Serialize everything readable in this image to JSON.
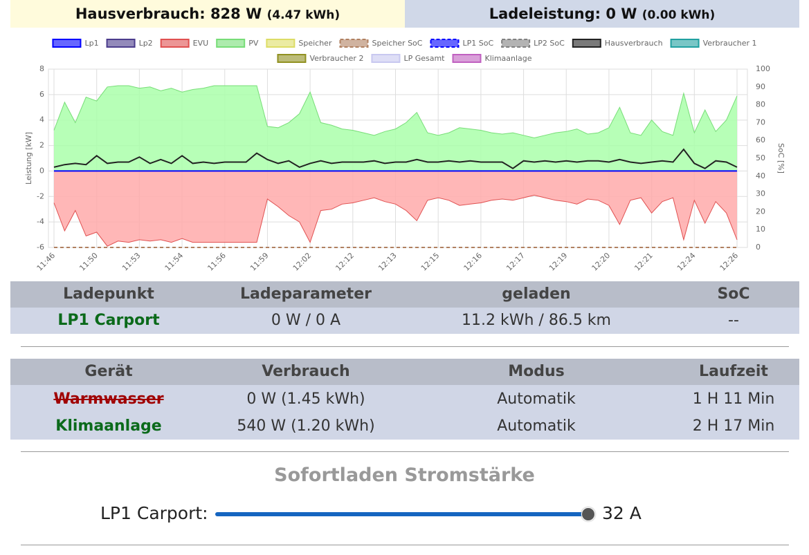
{
  "header": {
    "house_label": "Hausverbrauch: 828 W",
    "house_energy": "(4.47 kWh)",
    "charge_label": "Ladeleistung: 0 W",
    "charge_energy": "(0.00 kWh)"
  },
  "chart_data": {
    "type": "line",
    "ylabel": "Leistung [kW]",
    "y2label": "SoC [%]",
    "categories": [
      "11:46",
      null,
      null,
      null,
      "11:50",
      null,
      null,
      null,
      "11:53",
      null,
      null,
      null,
      "11:54",
      null,
      null,
      null,
      "11:56",
      null,
      null,
      null,
      "11:59",
      null,
      null,
      null,
      "12:02",
      null,
      null,
      null,
      "12:12",
      null,
      null,
      null,
      "12:13",
      null,
      null,
      null,
      "12:15",
      null,
      null,
      null,
      "12:16",
      null,
      null,
      null,
      "12:17",
      null,
      null,
      null,
      "12:19",
      null,
      null,
      null,
      "12:20",
      null,
      null,
      null,
      "12:21",
      null,
      null,
      null,
      "12:24",
      null,
      null,
      null,
      "12:26"
    ],
    "ylim": [
      -6,
      8
    ],
    "yticks": [
      -6,
      -4,
      -2,
      0,
      2,
      4,
      6,
      8
    ],
    "y2lim": [
      0,
      100
    ],
    "y2ticks": [
      0,
      10,
      20,
      30,
      40,
      50,
      60,
      70,
      80,
      90,
      100
    ],
    "grid": true,
    "legend": "top",
    "series": [
      {
        "name": "Lp1",
        "color": "#0000ff",
        "values": [
          0,
          0,
          0,
          0,
          0,
          0,
          0,
          0,
          0,
          0,
          0,
          0,
          0,
          0,
          0,
          0,
          0,
          0,
          0,
          0,
          0,
          0,
          0,
          0,
          0,
          0,
          0,
          0,
          0,
          0,
          0,
          0,
          0,
          0,
          0,
          0,
          0,
          0,
          0,
          0,
          0,
          0,
          0,
          0,
          0,
          0,
          0,
          0,
          0,
          0,
          0,
          0,
          0,
          0,
          0,
          0,
          0,
          0,
          0,
          0,
          0,
          0,
          0,
          0,
          0
        ]
      },
      {
        "name": "Lp2",
        "color": "#4b3c8c"
      },
      {
        "name": "EVU",
        "color": "#e05050",
        "fill": "#ffaaaa",
        "values": [
          -2.5,
          -4.7,
          -3.1,
          -5.1,
          -4.8,
          -5.9,
          -5.5,
          -5.6,
          -5.4,
          -5.5,
          -5.4,
          -5.6,
          -5.3,
          -5.6,
          -5.6,
          -5.6,
          -5.6,
          -5.6,
          -5.6,
          -5.6,
          -2.2,
          -2.8,
          -3.5,
          -4.0,
          -5.6,
          -3.1,
          -3.0,
          -2.6,
          -2.5,
          -2.3,
          -2.1,
          -2.4,
          -2.6,
          -3.1,
          -3.9,
          -2.3,
          -2.1,
          -2.3,
          -2.7,
          -2.6,
          -2.5,
          -2.3,
          -2.2,
          -2.3,
          -2.1,
          -1.9,
          -2.1,
          -2.3,
          -2.4,
          -2.6,
          -2.2,
          -2.3,
          -2.7,
          -4.2,
          -2.3,
          -2.1,
          -3.3,
          -2.4,
          -2.1,
          -5.4,
          -2.3,
          -4.1,
          -2.4,
          -3.3,
          -5.4
        ]
      },
      {
        "name": "PV",
        "color": "#77dd77",
        "fill": "#aaffaa",
        "values": [
          3.2,
          5.4,
          3.8,
          5.8,
          5.5,
          6.6,
          6.7,
          6.7,
          6.5,
          6.6,
          6.3,
          6.5,
          6.2,
          6.4,
          6.5,
          6.7,
          6.7,
          6.7,
          6.7,
          6.7,
          3.5,
          3.4,
          3.8,
          4.5,
          6.2,
          3.8,
          3.6,
          3.3,
          3.2,
          3.0,
          2.8,
          3.1,
          3.3,
          3.8,
          4.6,
          3.0,
          2.8,
          3.0,
          3.4,
          3.3,
          3.2,
          3.0,
          2.9,
          3.0,
          2.8,
          2.6,
          2.8,
          3.0,
          3.1,
          3.3,
          2.9,
          3.0,
          3.4,
          5.0,
          3.0,
          2.8,
          4.0,
          3.1,
          2.8,
          6.1,
          3.0,
          4.8,
          3.1,
          4.0,
          5.9
        ]
      },
      {
        "name": "Speicher",
        "color": "#dddd66"
      },
      {
        "name": "Speicher SoC",
        "color": "#b08060",
        "dash": true,
        "axis": "y2",
        "values": [
          0,
          0,
          0,
          0,
          0,
          0,
          0,
          0,
          0,
          0,
          0,
          0,
          0,
          0,
          0,
          0,
          0,
          0,
          0,
          0,
          0,
          0,
          0,
          0,
          0,
          0,
          0,
          0,
          0,
          0,
          0,
          0,
          0,
          0,
          0,
          0,
          0,
          0,
          0,
          0,
          0,
          0,
          0,
          0,
          0,
          0,
          0,
          0,
          0,
          0,
          0,
          0,
          0,
          0,
          0,
          0,
          0,
          0,
          0,
          0,
          0,
          0,
          0,
          0,
          0
        ]
      },
      {
        "name": "LP1 SoC",
        "color": "#0000ff",
        "dash": true
      },
      {
        "name": "LP2 SoC",
        "color": "#808080",
        "dash": true
      },
      {
        "name": "Hausverbrauch",
        "color": "#222222",
        "values": [
          0.3,
          0.5,
          0.6,
          0.5,
          1.2,
          0.6,
          0.7,
          0.7,
          1.1,
          0.6,
          0.9,
          0.6,
          1.2,
          0.6,
          0.7,
          0.6,
          0.7,
          0.7,
          0.7,
          1.4,
          0.9,
          0.6,
          0.8,
          0.3,
          0.6,
          0.8,
          0.6,
          0.7,
          0.7,
          0.7,
          0.8,
          0.6,
          0.7,
          0.7,
          0.9,
          0.7,
          0.7,
          0.8,
          0.7,
          0.8,
          0.7,
          0.7,
          0.7,
          0.2,
          0.8,
          0.7,
          0.8,
          0.7,
          0.8,
          0.7,
          0.8,
          0.8,
          0.7,
          0.9,
          0.7,
          0.6,
          0.7,
          0.8,
          0.7,
          1.7,
          0.6,
          0.2,
          0.8,
          0.7,
          0.3
        ]
      },
      {
        "name": "Verbraucher 1",
        "color": "#20a0a0"
      },
      {
        "name": "Verbraucher 2",
        "color": "#909020"
      },
      {
        "name": "LP Gesamt",
        "color": "#c8c8f0"
      },
      {
        "name": "Klimaanlage",
        "color": "#c060c0"
      }
    ]
  },
  "charge_table": {
    "columns": [
      "Ladepunkt",
      "Ladeparameter",
      "geladen",
      "SoC"
    ],
    "rows": [
      [
        "LP1 Carport",
        "0 W / 0 A",
        "11.2 kWh / 86.5 km",
        "--"
      ]
    ]
  },
  "device_table": {
    "columns": [
      "Gerät",
      "Verbrauch",
      "Modus",
      "Laufzeit"
    ],
    "rows": [
      [
        "Warmwasser",
        "0 W (1.45 kWh)",
        "Automatik",
        "1 H 11 Min"
      ],
      [
        "Klimaanlage",
        "540 W (1.20 kWh)",
        "Automatik",
        "2 H 17 Min"
      ]
    ]
  },
  "instant_charge": {
    "title": "Sofortladen Stromstärke",
    "label": "LP1 Carport:",
    "value": "32 A"
  }
}
